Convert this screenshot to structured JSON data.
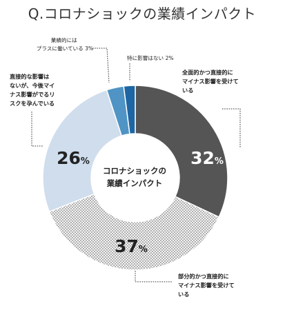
{
  "title": "Q.コロナショックの業績インパクト",
  "center_label": [
    "コロナショックの",
    "業績インパクト"
  ],
  "chart_data": {
    "type": "pie",
    "title": "Q.コロナショックの業績インパクト",
    "slices": [
      {
        "label": [
          "全面的かつ直接的に",
          "マイナス影響を受けて",
          "いる"
        ],
        "value": 32,
        "color": "#555555",
        "pct_color": "#ffffff",
        "pattern": "solid"
      },
      {
        "label": [
          "部分的かつ直接的に",
          "マイナス影響を受けて",
          "いる"
        ],
        "value": 37,
        "color": "#efefef",
        "pct_color": "#222222",
        "pattern": "dots"
      },
      {
        "label": [
          "直接的な影響は",
          "ないが、今後マイ",
          "ナス影響がでるリ",
          "スクを孕んでいる"
        ],
        "value": 26,
        "color": "#cfdded",
        "pct_color": "#222222",
        "pattern": "solid"
      },
      {
        "label": [
          "業績的には",
          "プラスに働いている 3%"
        ],
        "value": 3,
        "color": "#4f94c4",
        "pct_color": "",
        "pattern": "solid"
      },
      {
        "label": [
          "特に影響はない 2%"
        ],
        "value": 2,
        "color": "#1e66a3",
        "pct_color": "",
        "pattern": "solid"
      }
    ],
    "value_labels": [
      {
        "num": "32",
        "unit": "%"
      },
      {
        "num": "37",
        "unit": "%"
      },
      {
        "num": "26",
        "unit": "%"
      }
    ]
  }
}
